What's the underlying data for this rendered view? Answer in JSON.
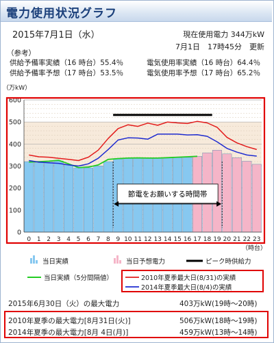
{
  "header": {
    "title": "電力使用状況グラフ",
    "date": "2015年7月1日（水）",
    "current_usage": "現在使用電力 344万kW",
    "update_time": "7月1日　17時45分　更新"
  },
  "reference": {
    "label": "（参考）",
    "rows": [
      {
        "left": "供給予備率実績（16 時台）55.4％",
        "right": "電気使用率実績（16 時台）64.4％"
      },
      {
        "left": "供給予備率予想（17 時台）53.5％",
        "right": "電気使用率予想（17 時台）65.2％"
      }
    ]
  },
  "footer": {
    "rows": [
      {
        "label": "2015年6月30日（火）の最大電力",
        "value": "403万kW(19時〜20時)"
      },
      {
        "label": "2010年夏季の最大電力[8月31日(火)]",
        "value": "506万kW(18時〜19時)"
      },
      {
        "label": "2014年夏季の最大電力[8月 4日(月)]",
        "value": "459万kW(13時〜14時)"
      }
    ]
  },
  "colors": {
    "actual_bar": "#87c8f0",
    "forecast_bar": "#f5b5c8",
    "five_min_line": "#22cc22",
    "line_2010": "#e31b1b",
    "line_2014": "#1e2bd0",
    "peak_supply": "#000000",
    "highlight_box": "#e00000",
    "band": "#f7eadb"
  },
  "chart_data": {
    "type": "bar",
    "unit_label": "（万kW）",
    "x_label": "（時台）",
    "ylim": [
      0,
      600
    ],
    "y_ticks": [
      0,
      100,
      200,
      300,
      400,
      500,
      600
    ],
    "categories": [
      "0",
      "1",
      "2",
      "3",
      "4",
      "5",
      "6",
      "7",
      "8",
      "9",
      "10",
      "11",
      "12",
      "13",
      "14",
      "15",
      "16",
      "17",
      "18",
      "19",
      "20",
      "21",
      "22",
      "23"
    ],
    "series": [
      {
        "name": "当日実績",
        "kind": "bar",
        "values": [
          320,
          315,
          318,
          323,
          305,
          292,
          292,
          300,
          320,
          332,
          335,
          338,
          336,
          335,
          337,
          338,
          339,
          null,
          null,
          null,
          null,
          null,
          null,
          null
        ]
      },
      {
        "name": "当日予想電力",
        "kind": "bar",
        "values": [
          null,
          null,
          null,
          null,
          null,
          null,
          null,
          null,
          null,
          null,
          null,
          null,
          null,
          null,
          null,
          null,
          null,
          344,
          360,
          372,
          355,
          338,
          322,
          308
        ]
      },
      {
        "name": "当日実績（5分間隔値）",
        "kind": "line",
        "values": [
          318,
          320,
          322,
          326,
          310,
          293,
          295,
          305,
          330,
          334,
          336,
          337,
          336,
          336,
          338,
          340,
          342,
          344,
          null,
          null,
          null,
          null,
          null,
          null
        ]
      },
      {
        "name": "2010年夏季最大日(8/31)の実績",
        "kind": "line",
        "values": [
          350,
          342,
          340,
          335,
          330,
          325,
          340,
          372,
          425,
          470,
          487,
          480,
          495,
          485,
          500,
          496,
          493,
          503,
          496,
          476,
          430,
          405,
          388,
          375
        ]
      },
      {
        "name": "2014年夏季最大日(8/4)の実績",
        "kind": "line",
        "values": [
          325,
          318,
          315,
          312,
          305,
          300,
          310,
          335,
          375,
          418,
          428,
          427,
          422,
          445,
          445,
          445,
          441,
          442,
          435,
          410,
          380,
          363,
          350,
          345
        ]
      },
      {
        "name": "ピーク時供給力",
        "kind": "hline",
        "value": 532,
        "x_range": [
          9,
          19
        ]
      }
    ],
    "annotation": {
      "text": "節電をお願いする時間帯",
      "x_range": [
        9,
        20
      ],
      "arrow_y": 128
    },
    "legend": {
      "placement": "bottom",
      "items": [
        "当日実績",
        "当日予想電力",
        "ピーク時供給力",
        "当日実績（5分間隔値）",
        "2010年夏季最大日(8/31)の実績",
        "2014年夏季最大日(8/4)の実績"
      ]
    }
  }
}
